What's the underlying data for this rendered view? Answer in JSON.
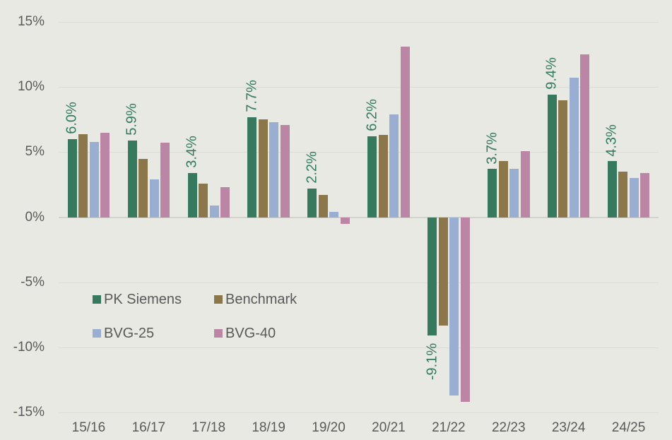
{
  "chart_data": {
    "type": "bar",
    "title": "",
    "categories": [
      "15/16",
      "16/17",
      "17/18",
      "18/19",
      "19/20",
      "20/21",
      "21/22",
      "22/23",
      "23/24",
      "24/25"
    ],
    "series": [
      {
        "name": "PK Siemens",
        "color": "#36795f",
        "values": [
          6.0,
          5.9,
          3.4,
          7.7,
          2.2,
          6.2,
          -9.1,
          3.7,
          9.4,
          4.3
        ]
      },
      {
        "name": "Benchmark",
        "color": "#8c774b",
        "values": [
          6.4,
          4.5,
          2.6,
          7.5,
          1.7,
          6.3,
          -8.3,
          4.3,
          9.0,
          3.5
        ]
      },
      {
        "name": "BVG-25",
        "color": "#99aed0",
        "values": [
          5.8,
          2.9,
          0.9,
          7.3,
          0.4,
          7.9,
          -13.7,
          3.7,
          10.7,
          3.0
        ]
      },
      {
        "name": "BVG-40",
        "color": "#bb86a5",
        "values": [
          6.5,
          5.7,
          2.3,
          7.1,
          -0.5,
          13.1,
          -14.2,
          5.1,
          12.5,
          3.4
        ]
      }
    ],
    "bar_labels": [
      "6.0%",
      "5.9%",
      "3.4%",
      "7.7%",
      "2.2%",
      "6.2%",
      "-9.1%",
      "3.7%",
      "9.4%",
      "4.3%"
    ],
    "bar_labels_series": "PK Siemens",
    "yticks": [
      15,
      10,
      5,
      0,
      -5,
      -10,
      -15
    ],
    "ytick_labels": [
      "15%",
      "10%",
      "5%",
      "0%",
      "-5%",
      "-10%",
      "-15%"
    ],
    "ylim": [
      -15,
      15
    ],
    "grid": true,
    "legend_position": "inside-center-left",
    "colors": {
      "background": "#e9e9e4",
      "gridline": "#dbdbd6",
      "zero_line": "#d3d3ce",
      "axis_text": "#595959",
      "bar_label_text": "#337a60"
    }
  }
}
